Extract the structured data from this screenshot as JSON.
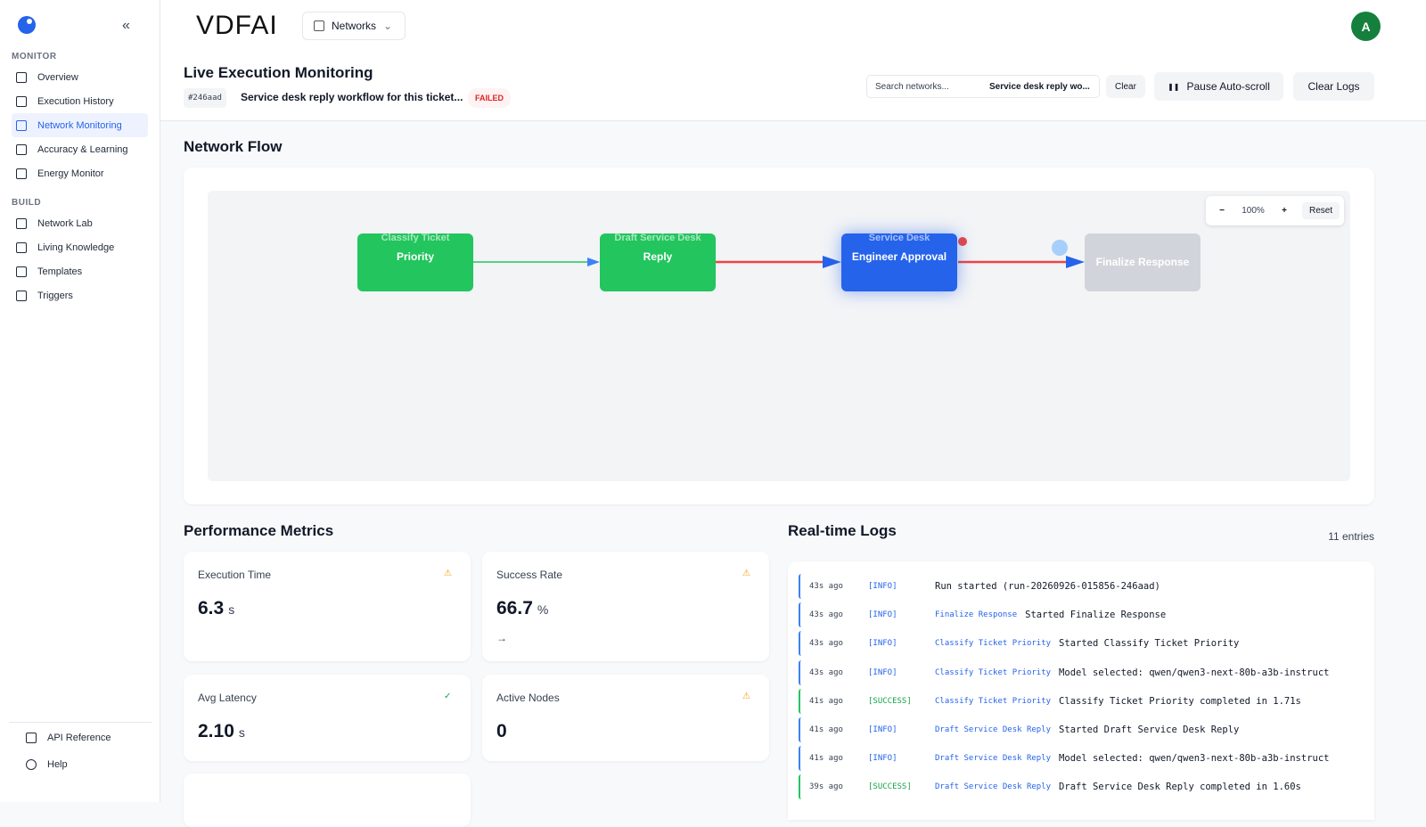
{
  "sidebar": {
    "sections": [
      {
        "title": "MONITOR",
        "items": [
          "Overview",
          "Execution History",
          "Network Monitoring",
          "Accuracy & Learning",
          "Energy Monitor"
        ]
      },
      {
        "title": "BUILD",
        "items": [
          "Network Lab",
          "Living Knowledge",
          "Templates",
          "Triggers"
        ]
      }
    ],
    "footer": [
      "API Reference",
      "Help"
    ]
  },
  "header": {
    "logo": "VDFAI",
    "networks": "Networks",
    "avatar": "A"
  },
  "page": {
    "title": "Live Execution Monitoring",
    "run_id": "#246aad",
    "description": "Service desk reply workflow for this ticket...",
    "status": "FAILED",
    "search_placeholder": "Search networks...",
    "search_value": "Service desk reply wo...",
    "clear": "Clear",
    "pause": "Pause Auto-scroll",
    "clear_logs": "Clear Logs"
  },
  "flow": {
    "title": "Network Flow",
    "zoom": "100%",
    "reset": "Reset",
    "nodes": [
      {
        "top": "Classify Ticket",
        "label": "Priority"
      },
      {
        "top": "Draft Service Desk",
        "label": "Reply"
      },
      {
        "top": "Service Desk",
        "label": "Engineer Approval"
      },
      {
        "label": "Finalize Response"
      }
    ]
  },
  "metrics": {
    "title": "Performance Metrics",
    "cards": [
      {
        "label": "Execution Time",
        "value": "6.3",
        "unit": "s"
      },
      {
        "label": "Success Rate",
        "value": "66.7",
        "unit": "%",
        "trend": "→"
      },
      {
        "label": "Avg Latency",
        "value": "2.10",
        "unit": "s"
      },
      {
        "label": "Active Nodes",
        "value": "0"
      }
    ]
  },
  "logs": {
    "title": "Real-time Logs",
    "count": "11 entries",
    "entries": [
      {
        "time": "43s ago",
        "level": "[INFO]",
        "message": "Run started (run-20260926-015856-246aad)"
      },
      {
        "time": "43s ago",
        "level": "[INFO]",
        "node": "Finalize Response",
        "message": "Started Finalize Response"
      },
      {
        "time": "43s ago",
        "level": "[INFO]",
        "node": "Classify Ticket Priority",
        "message": "Started Classify Ticket Priority"
      },
      {
        "time": "43s ago",
        "level": "[INFO]",
        "node": "Classify Ticket Priority",
        "message": "Model selected: qwen/qwen3-next-80b-a3b-instruct"
      },
      {
        "time": "41s ago",
        "level": "[SUCCESS]",
        "node": "Classify Ticket Priority",
        "message": "Classify Ticket Priority completed in 1.71s"
      },
      {
        "time": "41s ago",
        "level": "[INFO]",
        "node": "Draft Service Desk Reply",
        "message": "Started Draft Service Desk Reply"
      },
      {
        "time": "41s ago",
        "level": "[INFO]",
        "node": "Draft Service Desk Reply",
        "message": "Model selected: qwen/qwen3-next-80b-a3b-instruct"
      },
      {
        "time": "39s ago",
        "level": "[SUCCESS]",
        "node": "Draft Service Desk Reply",
        "message": "Draft Service Desk Reply completed in 1.60s"
      }
    ]
  }
}
